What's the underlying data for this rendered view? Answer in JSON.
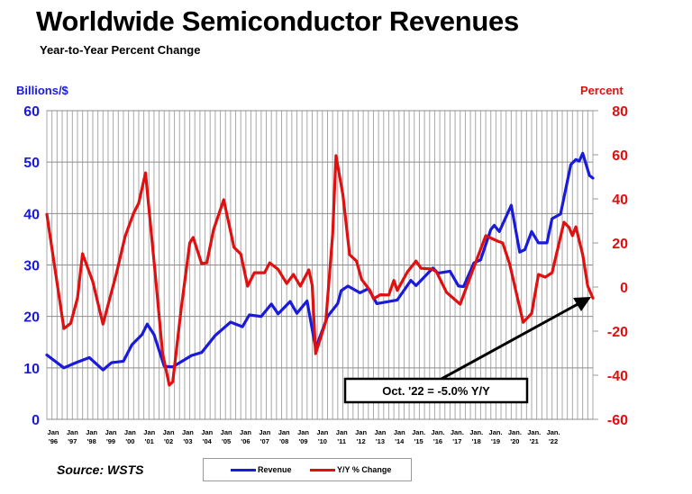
{
  "title": "Worldwide Semiconductor Revenues",
  "subtitle": "Year-to-Year Percent Change",
  "source": "Source: WSTS",
  "chart_data": {
    "type": "line",
    "title": "Worldwide Semiconductor Revenues",
    "subtitle": "Year-to-Year Percent Change",
    "left_axis": {
      "label": "Billions/$",
      "range": [
        0,
        60
      ],
      "ticks": [
        0,
        10,
        20,
        30,
        40,
        50,
        60
      ],
      "color": "#1a1adb"
    },
    "right_axis": {
      "label": "Percent",
      "range": [
        -60,
        80
      ],
      "ticks": [
        -60,
        -40,
        -20,
        0,
        20,
        40,
        60,
        80
      ],
      "color": "#e01010"
    },
    "x_range": [
      "1996-01",
      "2022-10"
    ],
    "x_tick_labels": [
      [
        "Jan",
        "'96"
      ],
      [
        "Jan",
        "'97"
      ],
      [
        "Jan",
        "'98"
      ],
      [
        "Jan",
        "'99"
      ],
      [
        "Jan",
        "'00"
      ],
      [
        "Jan",
        "'01"
      ],
      [
        "Jan",
        "'02"
      ],
      [
        "Jan",
        "'03"
      ],
      [
        "Jan",
        "'04"
      ],
      [
        "Jan",
        "'05"
      ],
      [
        "Jan",
        "'06"
      ],
      [
        "Jan",
        "'07"
      ],
      [
        "Jan",
        "'08"
      ],
      [
        "Jan",
        "'09"
      ],
      [
        "Jan",
        "'10"
      ],
      [
        "Jan",
        "'11"
      ],
      [
        "Jan",
        "'12"
      ],
      [
        "Jan",
        "'13"
      ],
      [
        "Jan",
        "'14"
      ],
      [
        "Jan.",
        "'15"
      ],
      [
        "Jan.",
        "'16"
      ],
      [
        "Jan.",
        "'17"
      ],
      [
        "Jan.",
        "'18"
      ],
      [
        "Jan.",
        "'19"
      ],
      [
        "Jan.",
        "'20"
      ],
      [
        "Jan.",
        "'21"
      ],
      [
        "Jan.",
        "'22"
      ]
    ],
    "grid": true,
    "legend_placement": "bottom",
    "annotation": "Oct. '22 = -5.0% Y/Y",
    "series": [
      {
        "name": "Revenue",
        "axis": "left",
        "color": "#1a1adb",
        "points": [
          [
            "1996-01",
            12.5
          ],
          [
            "1996-11",
            10
          ],
          [
            "1997-06",
            11
          ],
          [
            "1998-02",
            12
          ],
          [
            "1998-10",
            9.6
          ],
          [
            "1999-03",
            11
          ],
          [
            "1999-10",
            11.3
          ],
          [
            "2000-03",
            14.5
          ],
          [
            "2000-09",
            16.5
          ],
          [
            "2000-12",
            18.5
          ],
          [
            "2001-04",
            16.5
          ],
          [
            "2001-10",
            10.3
          ],
          [
            "2002-03",
            10.2
          ],
          [
            "2003-02",
            12.4
          ],
          [
            "2003-08",
            13
          ],
          [
            "2004-04",
            16.3
          ],
          [
            "2005-01",
            18.9
          ],
          [
            "2005-08",
            18
          ],
          [
            "2005-12",
            20.3
          ],
          [
            "2006-07",
            20
          ],
          [
            "2007-01",
            22.4
          ],
          [
            "2007-05",
            20.5
          ],
          [
            "2007-12",
            22.9
          ],
          [
            "2008-04",
            20.6
          ],
          [
            "2008-10",
            23
          ],
          [
            "2009-03",
            13.8
          ],
          [
            "2009-10",
            20
          ],
          [
            "2010-04",
            22.5
          ],
          [
            "2010-06",
            25
          ],
          [
            "2010-10",
            25.9
          ],
          [
            "2011-05",
            24.6
          ],
          [
            "2011-10",
            25.4
          ],
          [
            "2012-03",
            22.5
          ],
          [
            "2013-03",
            23.2
          ],
          [
            "2013-11",
            27
          ],
          [
            "2014-02",
            26
          ],
          [
            "2014-12",
            29.4
          ],
          [
            "2015-03",
            28.4
          ],
          [
            "2015-10",
            28.8
          ],
          [
            "2016-03",
            25.9
          ],
          [
            "2016-06",
            25.8
          ],
          [
            "2016-12",
            30.4
          ],
          [
            "2017-04",
            31
          ],
          [
            "2017-10",
            36.9
          ],
          [
            "2017-12",
            37.7
          ],
          [
            "2018-03",
            36.5
          ],
          [
            "2018-10",
            41.6
          ],
          [
            "2019-03",
            32.5
          ],
          [
            "2019-06",
            33
          ],
          [
            "2019-10",
            36.5
          ],
          [
            "2020-02",
            34.3
          ],
          [
            "2020-07",
            34.3
          ],
          [
            "2020-10",
            39
          ],
          [
            "2021-03",
            39.9
          ],
          [
            "2021-09",
            49.5
          ],
          [
            "2021-12",
            50.5
          ],
          [
            "2022-02",
            50.2
          ],
          [
            "2022-04",
            51.7
          ],
          [
            "2022-08",
            47.4
          ],
          [
            "2022-10",
            46.9
          ]
        ]
      },
      {
        "name": "Y/Y % Change",
        "axis": "right",
        "color": "#e01010",
        "points": [
          [
            "1996-01",
            33
          ],
          [
            "1996-11",
            -18.8
          ],
          [
            "1997-03",
            -16.5
          ],
          [
            "1997-07",
            -5
          ],
          [
            "1997-10",
            15.1
          ],
          [
            "1998-04",
            2.4
          ],
          [
            "1998-10",
            -16.8
          ],
          [
            "1999-06",
            6.5
          ],
          [
            "1999-11",
            22.9
          ],
          [
            "2000-04",
            33.5
          ],
          [
            "2000-07",
            38
          ],
          [
            "2000-11",
            51.8
          ],
          [
            "2001-05",
            3.7
          ],
          [
            "2001-09",
            -30
          ],
          [
            "2002-01",
            -44.5
          ],
          [
            "2002-03",
            -43
          ],
          [
            "2002-08",
            -9.8
          ],
          [
            "2003-01",
            20
          ],
          [
            "2003-03",
            22.5
          ],
          [
            "2003-08",
            10.6
          ],
          [
            "2003-11",
            11
          ],
          [
            "2004-03",
            26
          ],
          [
            "2004-09",
            39.6
          ],
          [
            "2005-03",
            18
          ],
          [
            "2005-07",
            15
          ],
          [
            "2005-11",
            0.4
          ],
          [
            "2006-03",
            6.5
          ],
          [
            "2006-09",
            6.5
          ],
          [
            "2006-12",
            11
          ],
          [
            "2007-05",
            8
          ],
          [
            "2007-10",
            1.6
          ],
          [
            "2008-02",
            5.7
          ],
          [
            "2008-06",
            0.4
          ],
          [
            "2008-11",
            7.8
          ],
          [
            "2009-01",
            0.8
          ],
          [
            "2009-03",
            -30.2
          ],
          [
            "2009-09",
            -15.5
          ],
          [
            "2010-01",
            24
          ],
          [
            "2010-03",
            59.6
          ],
          [
            "2010-07",
            42
          ],
          [
            "2010-11",
            14.7
          ],
          [
            "2011-03",
            11.8
          ],
          [
            "2011-06",
            3.5
          ],
          [
            "2011-11",
            -1.6
          ],
          [
            "2012-01",
            -5.3
          ],
          [
            "2012-05",
            -3.5
          ],
          [
            "2012-10",
            -3.6
          ],
          [
            "2013-01",
            3
          ],
          [
            "2013-03",
            -1.5
          ],
          [
            "2013-09",
            6.9
          ],
          [
            "2014-02",
            11.8
          ],
          [
            "2014-05",
            8.5
          ],
          [
            "2014-11",
            8.2
          ],
          [
            "2015-02",
            7
          ],
          [
            "2015-08",
            -2.4
          ],
          [
            "2016-04",
            -7.8
          ],
          [
            "2016-12",
            9
          ],
          [
            "2017-07",
            23.3
          ],
          [
            "2018-02",
            20.8
          ],
          [
            "2018-05",
            20
          ],
          [
            "2018-09",
            10.6
          ],
          [
            "2019-05",
            -16
          ],
          [
            "2019-10",
            -12
          ],
          [
            "2020-02",
            5.7
          ],
          [
            "2020-06",
            4.5
          ],
          [
            "2020-10",
            6.5
          ],
          [
            "2021-05",
            29.4
          ],
          [
            "2021-08",
            27
          ],
          [
            "2021-10",
            23.3
          ],
          [
            "2021-12",
            27.3
          ],
          [
            "2022-04",
            14.7
          ],
          [
            "2022-07",
            0.4
          ],
          [
            "2022-10",
            -5.0
          ]
        ]
      }
    ]
  }
}
